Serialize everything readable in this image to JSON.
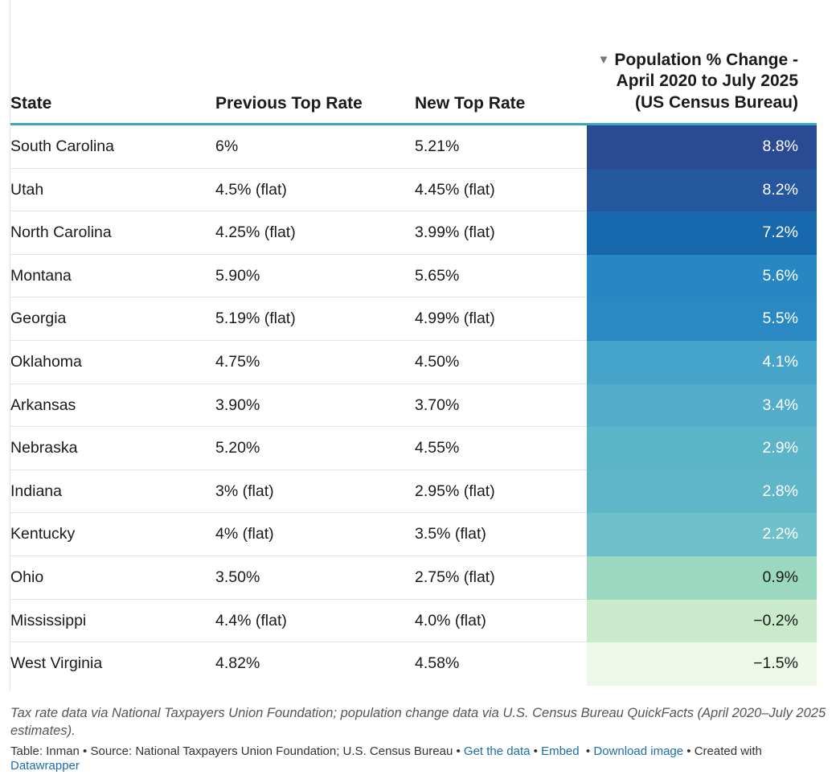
{
  "headers": {
    "state": "State",
    "previous": "Previous Top Rate",
    "new": "New Top Rate",
    "population": "Population % Change - April 2020 to July 2025 (US Census Bureau)",
    "sort_icon": "sort-descending-icon"
  },
  "rows": [
    {
      "state": "South Carolina",
      "previous": "6%",
      "new": "5.21%",
      "pop": "8.8%",
      "value": 8.8,
      "bg": "#2a4a93",
      "fg": "#ffffff"
    },
    {
      "state": "Utah",
      "previous": "4.5% (flat)",
      "new": "4.45% (flat)",
      "pop": "8.2%",
      "value": 8.2,
      "bg": "#24579e",
      "fg": "#ffffff"
    },
    {
      "state": "North Carolina",
      "previous": "4.25% (flat)",
      "new": "3.99% (flat)",
      "pop": "7.2%",
      "value": 7.2,
      "bg": "#1868ad",
      "fg": "#ffffff"
    },
    {
      "state": "Montana",
      "previous": "5.90%",
      "new": "5.65%",
      "pop": "5.6%",
      "value": 5.6,
      "bg": "#2787c2",
      "fg": "#ffffff"
    },
    {
      "state": "Georgia",
      "previous": "5.19% (flat)",
      "new": "4.99% (flat)",
      "pop": "5.5%",
      "value": 5.5,
      "bg": "#2a89c3",
      "fg": "#ffffff"
    },
    {
      "state": "Oklahoma",
      "previous": "4.75%",
      "new": "4.50%",
      "pop": "4.1%",
      "value": 4.1,
      "bg": "#46a3c9",
      "fg": "#ffffff"
    },
    {
      "state": "Arkansas",
      "previous": "3.90%",
      "new": "3.70%",
      "pop": "3.4%",
      "value": 3.4,
      "bg": "#53adca",
      "fg": "#ffffff"
    },
    {
      "state": "Nebraska",
      "previous": "5.20%",
      "new": "4.55%",
      "pop": "2.9%",
      "value": 2.9,
      "bg": "#5cb4c9",
      "fg": "#ffffff"
    },
    {
      "state": "Indiana",
      "previous": "3% (flat)",
      "new": "2.95% (flat)",
      "pop": "2.8%",
      "value": 2.8,
      "bg": "#5fb6c9",
      "fg": "#ffffff"
    },
    {
      "state": "Kentucky",
      "previous": "4% (flat)",
      "new": "3.5% (flat)",
      "pop": "2.2%",
      "value": 2.2,
      "bg": "#6ec1c8",
      "fg": "#ffffff"
    },
    {
      "state": "Ohio",
      "previous": "3.50%",
      "new": "2.75% (flat)",
      "pop": "0.9%",
      "value": 0.9,
      "bg": "#9ad9c0",
      "fg": "#1a1a1a"
    },
    {
      "state": "Mississippi",
      "previous": "4.4% (flat)",
      "new": "4.0% (flat)",
      "pop": "−0.2%",
      "value": -0.2,
      "bg": "#c9ebcb",
      "fg": "#1a1a1a"
    },
    {
      "state": "West Virginia",
      "previous": "4.82%",
      "new": "4.58%",
      "pop": "−1.5%",
      "value": -1.5,
      "bg": "#eef8e8",
      "fg": "#1a1a1a"
    }
  ],
  "notes": "Tax rate data via National Taxpayers Union Foundation; population change data via U.S. Census Bureau QuickFacts (April 2020–July 2025 estimates).",
  "footer": {
    "table_label": "Table: Inman",
    "sep": " • ",
    "source": "Source: National Taxpayers Union Foundation; U.S. Census Bureau",
    "get_data": "Get the data",
    "embed": "Embed",
    "download": "Download image",
    "created_with": "Created with",
    "datawrapper": "Datawrapper"
  },
  "chart_data": {
    "type": "table",
    "columns": [
      "State",
      "Previous Top Rate",
      "New Top Rate",
      "Population % Change - April 2020 to July 2025 (US Census Bureau)"
    ],
    "rows": [
      [
        "South Carolina",
        "6%",
        "5.21%",
        8.8
      ],
      [
        "Utah",
        "4.5% (flat)",
        "4.45% (flat)",
        8.2
      ],
      [
        "North Carolina",
        "4.25% (flat)",
        "3.99% (flat)",
        7.2
      ],
      [
        "Montana",
        "5.90%",
        "5.65%",
        5.6
      ],
      [
        "Georgia",
        "5.19% (flat)",
        "4.99% (flat)",
        5.5
      ],
      [
        "Oklahoma",
        "4.75%",
        "4.50%",
        4.1
      ],
      [
        "Arkansas",
        "3.90%",
        "3.70%",
        3.4
      ],
      [
        "Nebraska",
        "5.20%",
        "4.55%",
        2.9
      ],
      [
        "Indiana",
        "3% (flat)",
        "2.95% (flat)",
        2.8
      ],
      [
        "Kentucky",
        "4% (flat)",
        "3.5% (flat)",
        2.2
      ],
      [
        "Ohio",
        "3.50%",
        "2.75% (flat)",
        0.9
      ],
      [
        "Mississippi",
        "4.4% (flat)",
        "4.0% (flat)",
        -0.2
      ],
      [
        "West Virginia",
        "4.82%",
        "4.58%",
        -1.5
      ]
    ],
    "sorted_by": "Population % Change - April 2020 to July 2025 (US Census Bureau)",
    "sort_order": "descending"
  }
}
